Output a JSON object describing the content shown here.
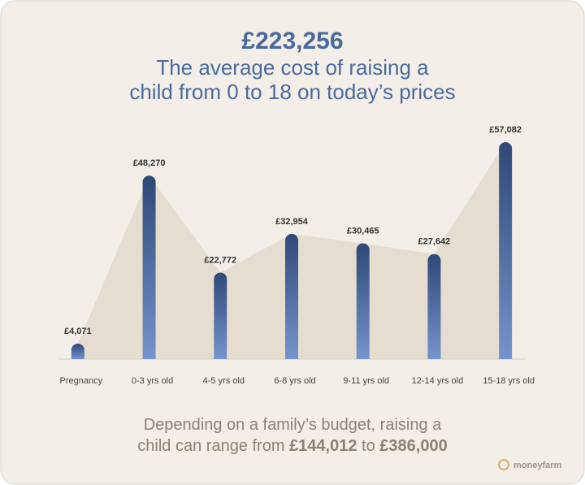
{
  "chart_data": {
    "type": "bar",
    "title": "£223,256",
    "subtitle": [
      "The average cost of raising a",
      "child from 0 to 18 on today’s prices"
    ],
    "categories": [
      "Pregnancy",
      "0-3 yrs old",
      "4-5 yrs old",
      "6-8 yrs old",
      "9-11 yrs old",
      "12-14 yrs old",
      "15-18 yrs old"
    ],
    "values": [
      4071,
      48270,
      22772,
      32954,
      30465,
      27642,
      57082
    ],
    "value_labels": [
      "£4,071",
      "£48,270",
      "£22,772",
      "£32,954",
      "£30,465",
      "£27,642",
      "£57,082"
    ],
    "color": "#4a6a9c",
    "footer": {
      "line1": "Depending on a family’s budget, raising a",
      "line2": "child can range from ",
      "low": "£144,012",
      "middle": " to ",
      "high": "£386,000"
    }
  },
  "brand": "moneyfarm"
}
